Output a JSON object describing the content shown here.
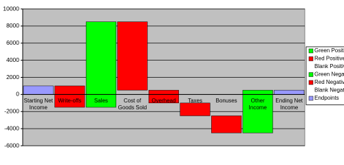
{
  "chart_data": {
    "type": "bar",
    "stacked": true,
    "categories": [
      "Starting Net Income",
      "Write-offs",
      "Sales",
      "Cost of Goods Sold",
      "Overhead",
      "Taxes",
      "Bonuses",
      "Other Income",
      "Ending Net Income"
    ],
    "series": [
      {
        "name": "Green Positive",
        "color": "#00ff00",
        "values": [
          0,
          0,
          8500,
          0,
          0,
          0,
          0,
          500,
          0
        ]
      },
      {
        "name": "Red Positive",
        "color": "#ff0000",
        "values": [
          0,
          1000,
          0,
          8000,
          500,
          0,
          0,
          0,
          0
        ]
      },
      {
        "name": "Blank Positive",
        "color": "none",
        "values": [
          0,
          0,
          0,
          500,
          0,
          0,
          0,
          0,
          0
        ]
      },
      {
        "name": "Green Negative",
        "color": "#00ff00",
        "values": [
          0,
          0,
          -1500,
          0,
          0,
          0,
          0,
          -4500,
          0
        ]
      },
      {
        "name": "Red Negative",
        "color": "#ff0000",
        "values": [
          0,
          -1500,
          0,
          0,
          -1000,
          -1500,
          -2000,
          0,
          0
        ]
      },
      {
        "name": "Blank Negative",
        "color": "none",
        "values": [
          0,
          0,
          0,
          0,
          0,
          -1000,
          -2500,
          0,
          0
        ]
      },
      {
        "name": "Endpoints",
        "color": "#9999ff",
        "values": [
          1000,
          0,
          0,
          0,
          0,
          0,
          0,
          0,
          500
        ]
      }
    ],
    "ylim": [
      -6000,
      10000
    ],
    "yticks": [
      -6000,
      -4000,
      -2000,
      0,
      2000,
      4000,
      6000,
      8000,
      10000
    ],
    "grid": true,
    "legend": "right",
    "plot_background": "#c0c0c0"
  }
}
